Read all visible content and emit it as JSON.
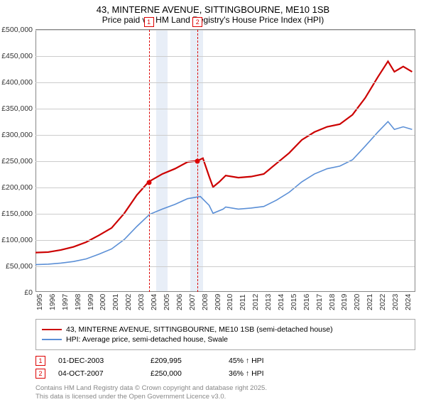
{
  "title_line1": "43, MINTERNE AVENUE, SITTINGBOURNE, ME10 1SB",
  "title_line2": "Price paid vs. HM Land Registry's House Price Index (HPI)",
  "chart": {
    "type": "line",
    "x_years": [
      1995,
      1996,
      1997,
      1998,
      1999,
      2000,
      2001,
      2002,
      2003,
      2004,
      2005,
      2006,
      2007,
      2008,
      2009,
      2010,
      2011,
      2012,
      2013,
      2014,
      2015,
      2016,
      2017,
      2018,
      2019,
      2020,
      2021,
      2022,
      2023,
      2024
    ],
    "ylim": [
      0,
      500000
    ],
    "ytick_step": 50000,
    "yticks": [
      "£0",
      "£50,000",
      "£100,000",
      "£150,000",
      "£200,000",
      "£250,000",
      "£300,000",
      "£350,000",
      "£400,000",
      "£450,000",
      "£500,000"
    ],
    "bands": [
      {
        "start_year": 2004.5,
        "end_year": 2005.4,
        "color": "#e8eef7"
      },
      {
        "start_year": 2007.2,
        "end_year": 2008.2,
        "color": "#e8eef7"
      }
    ],
    "markers": [
      {
        "num": "1",
        "year": 2003.92
      },
      {
        "num": "2",
        "year": 2007.76
      }
    ],
    "sale_points": [
      {
        "year": 2003.92,
        "value": 209995
      },
      {
        "year": 2007.76,
        "value": 250000
      }
    ],
    "series": [
      {
        "name": "property",
        "label": "43, MINTERNE AVENUE, SITTINGBOURNE, ME10 1SB (semi-detached house)",
        "color": "#cc0000",
        "width": 2.2,
        "data": [
          [
            1995,
            75000
          ],
          [
            1996,
            76000
          ],
          [
            1997,
            80000
          ],
          [
            1998,
            86000
          ],
          [
            1999,
            95000
          ],
          [
            2000,
            108000
          ],
          [
            2001,
            122000
          ],
          [
            2002,
            150000
          ],
          [
            2003,
            185000
          ],
          [
            2003.92,
            209995
          ],
          [
            2005,
            225000
          ],
          [
            2006,
            235000
          ],
          [
            2007,
            248000
          ],
          [
            2007.76,
            250000
          ],
          [
            2008.2,
            255000
          ],
          [
            2008.7,
            220000
          ],
          [
            2009,
            200000
          ],
          [
            2009.5,
            210000
          ],
          [
            2010,
            222000
          ],
          [
            2011,
            218000
          ],
          [
            2012,
            220000
          ],
          [
            2013,
            225000
          ],
          [
            2014,
            245000
          ],
          [
            2015,
            265000
          ],
          [
            2016,
            290000
          ],
          [
            2017,
            305000
          ],
          [
            2018,
            315000
          ],
          [
            2019,
            320000
          ],
          [
            2020,
            338000
          ],
          [
            2021,
            370000
          ],
          [
            2022,
            410000
          ],
          [
            2022.8,
            440000
          ],
          [
            2023.3,
            420000
          ],
          [
            2024,
            430000
          ],
          [
            2024.7,
            420000
          ]
        ]
      },
      {
        "name": "hpi",
        "label": "HPI: Average price, semi-detached house, Swale",
        "color": "#5b8fd6",
        "width": 1.6,
        "data": [
          [
            1995,
            52000
          ],
          [
            1996,
            53000
          ],
          [
            1997,
            55000
          ],
          [
            1998,
            58000
          ],
          [
            1999,
            63000
          ],
          [
            2000,
            72000
          ],
          [
            2001,
            82000
          ],
          [
            2002,
            100000
          ],
          [
            2003,
            125000
          ],
          [
            2004,
            148000
          ],
          [
            2005,
            158000
          ],
          [
            2006,
            167000
          ],
          [
            2007,
            178000
          ],
          [
            2008,
            182000
          ],
          [
            2008.7,
            165000
          ],
          [
            2009,
            150000
          ],
          [
            2009.8,
            158000
          ],
          [
            2010,
            162000
          ],
          [
            2011,
            158000
          ],
          [
            2012,
            160000
          ],
          [
            2013,
            163000
          ],
          [
            2014,
            175000
          ],
          [
            2015,
            190000
          ],
          [
            2016,
            210000
          ],
          [
            2017,
            225000
          ],
          [
            2018,
            235000
          ],
          [
            2019,
            240000
          ],
          [
            2020,
            252000
          ],
          [
            2021,
            278000
          ],
          [
            2022,
            305000
          ],
          [
            2022.8,
            325000
          ],
          [
            2023.3,
            310000
          ],
          [
            2024,
            315000
          ],
          [
            2024.7,
            310000
          ]
        ]
      }
    ],
    "grid_color": "#cccccc",
    "axis_color": "#888888",
    "background": "#ffffff"
  },
  "legend": {
    "row1_label": "43, MINTERNE AVENUE, SITTINGBOURNE, ME10 1SB (semi-detached house)",
    "row2_label": "HPI: Average price, semi-detached house, Swale"
  },
  "sales": [
    {
      "num": "1",
      "date": "01-DEC-2003",
      "price": "£209,995",
      "pct": "45% ↑ HPI"
    },
    {
      "num": "2",
      "date": "04-OCT-2007",
      "price": "£250,000",
      "pct": "36% ↑ HPI"
    }
  ],
  "credit_line1": "Contains HM Land Registry data © Crown copyright and database right 2025.",
  "credit_line2": "This data is licensed under the Open Government Licence v3.0."
}
